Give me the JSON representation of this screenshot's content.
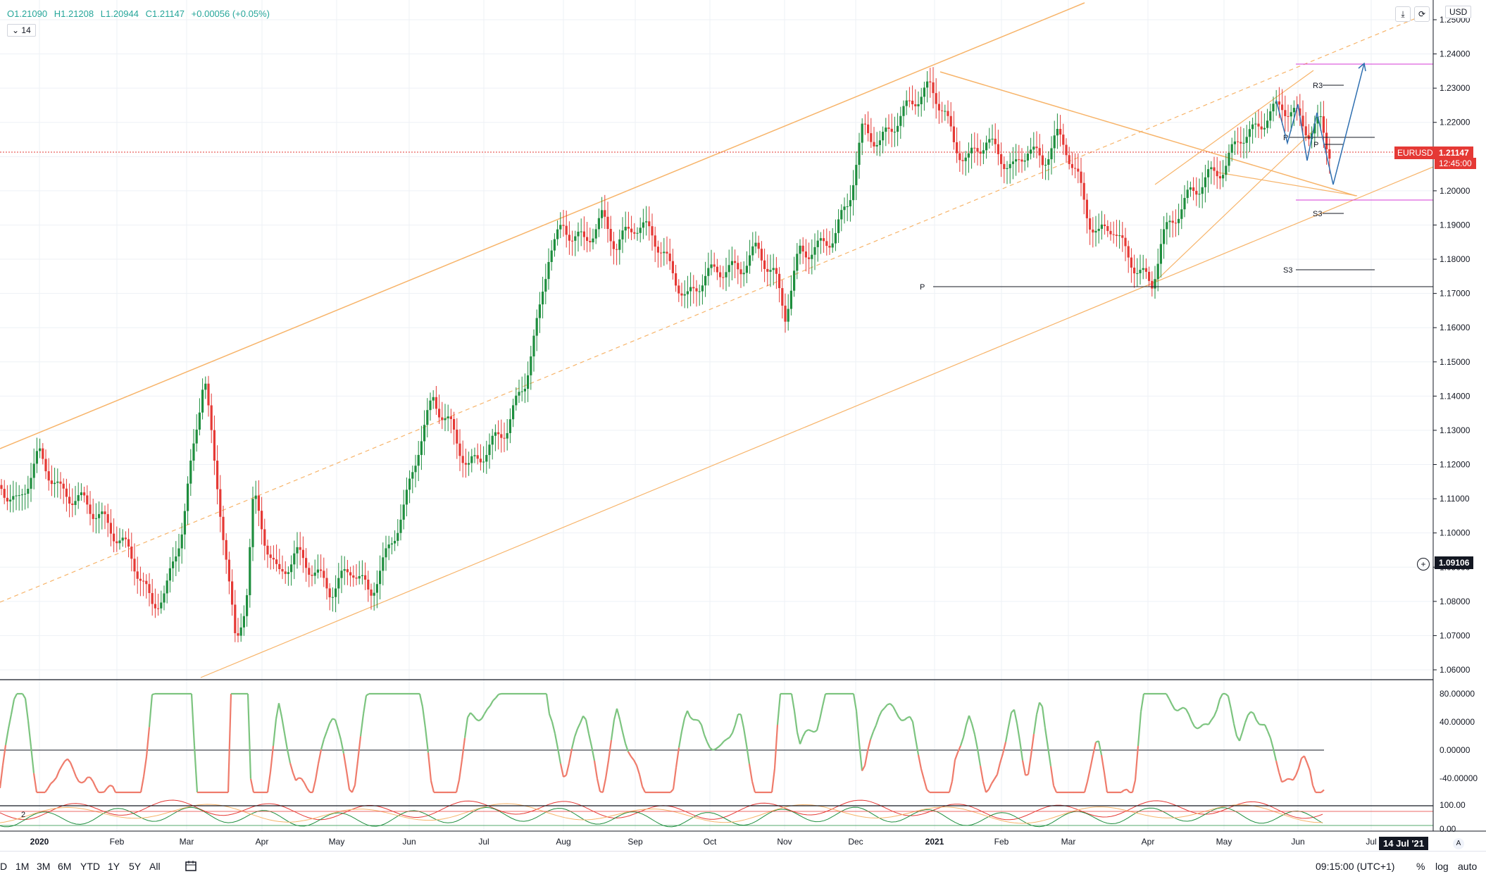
{
  "ohlc": {
    "o": "O1.21090",
    "h": "H1.21208",
    "l": "L1.20944",
    "c": "C1.21147",
    "chg": "+0.00056 (+0.05%)"
  },
  "indicator_badge": "14",
  "currency": "USD",
  "symbol_tag": "EURUSD",
  "last_price": "1.21147",
  "countdown": "12:45:00",
  "cursor_price": "1.09106",
  "date_tag": "14 Jul '21",
  "price_axis": [
    "1.25000",
    "1.24000",
    "1.23000",
    "1.22000",
    "1.21000",
    "1.20000",
    "1.19000",
    "1.18000",
    "1.17000",
    "1.16000",
    "1.15000",
    "1.14000",
    "1.13000",
    "1.12000",
    "1.11000",
    "1.10000",
    "1.09000",
    "1.08000",
    "1.07000",
    "1.06000"
  ],
  "osc_axis": [
    "80.00000",
    "40.00000",
    "0.00000",
    "-40.00000"
  ],
  "osc2_axis": [
    "100.00",
    "0.00"
  ],
  "osc2_label": "2",
  "time_axis": [
    "2020",
    "Feb",
    "Mar",
    "Apr",
    "May",
    "Jun",
    "Jul",
    "Aug",
    "Sep",
    "Oct",
    "Nov",
    "Dec",
    "2021",
    "Feb",
    "Mar",
    "Apr",
    "May",
    "Jun",
    "Jul"
  ],
  "pivots": {
    "r3": "R3",
    "s3a": "S3",
    "s3b": "S3",
    "p1": "P",
    "p2": "P",
    "p3": "P"
  },
  "timeframes": [
    "D",
    "1M",
    "3M",
    "6M",
    "YTD",
    "1Y",
    "5Y",
    "All"
  ],
  "time_readout": "09:15:00 (UTC+1)",
  "right_buttons": {
    "pct": "%",
    "log": "log",
    "auto": "auto"
  },
  "colors": {
    "up": "#1e8e3e",
    "down": "#e53935",
    "channel": "#f7b46a",
    "pivot": "#131722",
    "magenta": "#d63ad6",
    "arrow": "#2f6fb0",
    "osc_up": "#7cc47f",
    "osc_down": "#ef7b6b"
  },
  "icons": [
    "calendar-icon",
    "download-icon",
    "settings-icon",
    "cursor-crosshair-icon",
    "a-icon",
    "chevron-icon"
  ]
}
